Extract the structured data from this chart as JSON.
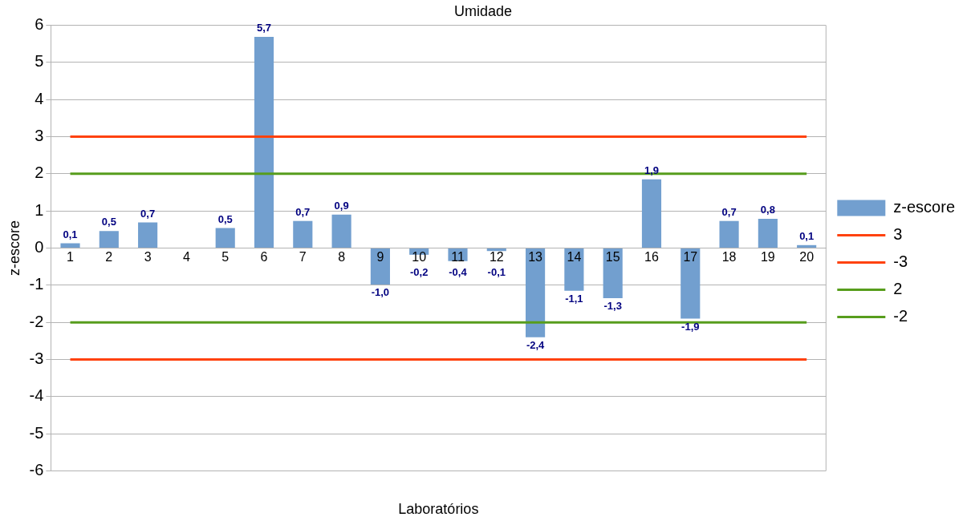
{
  "chart_data": {
    "type": "bar",
    "title": "Umidade",
    "xlabel": "Laboratórios",
    "ylabel": "z-escore",
    "categories": [
      "1",
      "2",
      "3",
      "4",
      "5",
      "6",
      "7",
      "8",
      "9",
      "10",
      "11",
      "12",
      "13",
      "14",
      "15",
      "16",
      "17",
      "18",
      "19",
      "20"
    ],
    "series": [
      {
        "name": "z-escore",
        "color": "#729fcf",
        "values": [
          0.13,
          0.46,
          0.69,
          null,
          0.54,
          5.69,
          0.73,
          0.9,
          -0.98,
          -0.18,
          -0.35,
          -0.08,
          -2.4,
          -1.15,
          -1.35,
          1.85,
          -1.9,
          0.73,
          0.79,
          0.08
        ],
        "value_labels": [
          "0,1",
          "0,5",
          "0,7",
          null,
          "0,5",
          "5,7",
          "0,7",
          "0,9",
          "-1,0",
          "-0,2",
          "-0,4",
          "-0,1",
          "-2,4",
          "-1,1",
          "-1,3",
          "1,9",
          "-1,9",
          "0,7",
          "0,8",
          "0,1"
        ]
      },
      {
        "name": "3",
        "type": "line",
        "color": "#ff420e",
        "values": [
          3,
          3,
          3,
          3,
          3,
          3,
          3,
          3,
          3,
          3,
          3,
          3,
          3,
          3,
          3,
          3,
          3,
          3,
          3,
          3
        ]
      },
      {
        "name": "-3",
        "type": "line",
        "color": "#ff420e",
        "values": [
          -3,
          -3,
          -3,
          -3,
          -3,
          -3,
          -3,
          -3,
          -3,
          -3,
          -3,
          -3,
          -3,
          -3,
          -3,
          -3,
          -3,
          -3,
          -3,
          -3
        ]
      },
      {
        "name": "2",
        "type": "line",
        "color": "#579d1c",
        "values": [
          2,
          2,
          2,
          2,
          2,
          2,
          2,
          2,
          2,
          2,
          2,
          2,
          2,
          2,
          2,
          2,
          2,
          2,
          2,
          2
        ]
      },
      {
        "name": "-2",
        "type": "line",
        "color": "#579d1c",
        "values": [
          -2,
          -2,
          -2,
          -2,
          -2,
          -2,
          -2,
          -2,
          -2,
          -2,
          -2,
          -2,
          -2,
          -2,
          -2,
          -2,
          -2,
          -2,
          -2,
          -2
        ]
      }
    ],
    "ylim": [
      -6,
      6
    ],
    "yticks": [
      -6,
      -5,
      -4,
      -3,
      -2,
      -1,
      0,
      1,
      2,
      3,
      4,
      5,
      6
    ],
    "grid": "y",
    "legend": "right",
    "marker": "none",
    "line_style": "solid"
  }
}
